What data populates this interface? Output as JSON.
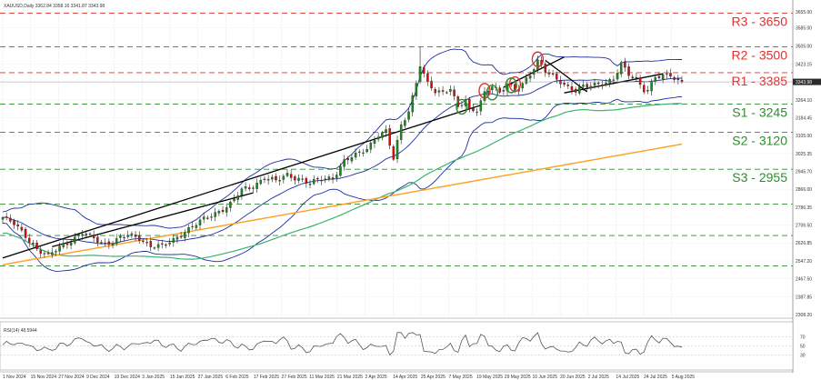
{
  "header": "XAUUSD,Daily  3362.84 3358.16 3341.87 3343.98",
  "rsi_label": "RSI(14) 48.5944",
  "current_price": "3343.98",
  "colors": {
    "resistance": "#e03030",
    "support": "#2e8b2e",
    "bull": "#1a8a1a",
    "bear": "#cc1111",
    "bollinger": "#1f2fa0",
    "ma100": "#3cb371",
    "ma200": "#ffa020",
    "trend": "#000000",
    "rsi": "#555555"
  },
  "levels": [
    {
      "name": "R3",
      "price": 3650,
      "text": "R3 - 3650",
      "kind": "resistance"
    },
    {
      "name": "R2",
      "price": 3500,
      "text": "R2 - 3500",
      "kind": "resistance"
    },
    {
      "name": "R1",
      "price": 3385,
      "text": "R1 - 3385",
      "kind": "resistance"
    },
    {
      "name": "S1",
      "price": 3245,
      "text": "S1 - 3245",
      "kind": "support"
    },
    {
      "name": "S2",
      "price": 3120,
      "text": "S2 - 3120",
      "kind": "support"
    },
    {
      "name": "S3",
      "price": 2955,
      "text": "S3 - 2955",
      "kind": "support"
    },
    {
      "name": "L4",
      "price": 2800,
      "text": "",
      "kind": "support"
    },
    {
      "name": "L5",
      "price": 2660,
      "text": "",
      "kind": "support"
    },
    {
      "name": "L6",
      "price": 2525,
      "text": "",
      "kind": "support"
    }
  ],
  "chart_data": {
    "type": "candlestick",
    "title": "XAUUSD,Daily",
    "xlabel": "",
    "ylabel": "",
    "y_ticks": [
      "3655.00",
      "3585.00",
      "3505.00",
      "3423.15",
      "3343.98",
      "3264.10",
      "3184.45",
      "3105.00",
      "3025.35",
      "2945.70",
      "2866.00",
      "2786.35",
      "2706.50",
      "2626.85",
      "2547.20",
      "2467.50",
      "2387.85",
      "2308.20"
    ],
    "x_ticks": [
      "1 Nov 2024",
      "15 Nov 2024",
      "27 Nov 2024",
      "9 Dec 2024",
      "19 Dec 2024",
      "3 Jan 2025",
      "15 Jan 2025",
      "27 Jan 2025",
      "6 Feb 2025",
      "17 Feb 2025",
      "27 Feb 2025",
      "11 Mar 2025",
      "21 Mar 2025",
      "2 Apr 2025",
      "14 Apr 2025",
      "25 Apr 2025",
      "7 May 2025",
      "19 May 2025",
      "29 May 2025",
      "10 Jun 2025",
      "20 Jun 2025",
      "2 Jul 2025",
      "14 Jul 2025",
      "24 Jul 2025",
      "5 Aug 2025"
    ],
    "close_anchors": [
      [
        0,
        2740
      ],
      [
        3,
        2710
      ],
      [
        6,
        2660
      ],
      [
        9,
        2600
      ],
      [
        12,
        2565
      ],
      [
        15,
        2610
      ],
      [
        18,
        2640
      ],
      [
        21,
        2670
      ],
      [
        24,
        2645
      ],
      [
        27,
        2625
      ],
      [
        30,
        2640
      ],
      [
        33,
        2660
      ],
      [
        36,
        2650
      ],
      [
        39,
        2615
      ],
      [
        42,
        2610
      ],
      [
        45,
        2640
      ],
      [
        48,
        2680
      ],
      [
        51,
        2710
      ],
      [
        54,
        2740
      ],
      [
        57,
        2770
      ],
      [
        60,
        2800
      ],
      [
        63,
        2860
      ],
      [
        66,
        2880
      ],
      [
        69,
        2920
      ],
      [
        72,
        2900
      ],
      [
        75,
        2930
      ],
      [
        78,
        2915
      ],
      [
        81,
        2890
      ],
      [
        84,
        2910
      ],
      [
        87,
        2920
      ],
      [
        90,
        2990
      ],
      [
        93,
        3015
      ],
      [
        96,
        3050
      ],
      [
        99,
        3110
      ],
      [
        101,
        3120
      ],
      [
        103,
        3000
      ],
      [
        105,
        3150
      ],
      [
        107,
        3220
      ],
      [
        109,
        3340
      ],
      [
        110,
        3420
      ],
      [
        112,
        3330
      ],
      [
        114,
        3300
      ],
      [
        116,
        3300
      ],
      [
        118,
        3320
      ],
      [
        120,
        3230
      ],
      [
        122,
        3260
      ],
      [
        123,
        3210
      ],
      [
        125,
        3220
      ],
      [
        127,
        3300
      ],
      [
        129,
        3330
      ],
      [
        131,
        3290
      ],
      [
        133,
        3330
      ],
      [
        135,
        3310
      ],
      [
        137,
        3340
      ],
      [
        139,
        3380
      ],
      [
        141,
        3430
      ],
      [
        143,
        3390
      ],
      [
        145,
        3370
      ],
      [
        147,
        3350
      ],
      [
        149,
        3320
      ],
      [
        151,
        3300
      ],
      [
        153,
        3320
      ],
      [
        155,
        3330
      ],
      [
        157,
        3340
      ],
      [
        159,
        3340
      ],
      [
        161,
        3350
      ],
      [
        163,
        3420
      ],
      [
        165,
        3380
      ],
      [
        167,
        3360
      ],
      [
        169,
        3310
      ],
      [
        170,
        3305
      ],
      [
        172,
        3360
      ],
      [
        174,
        3370
      ],
      [
        176,
        3380
      ],
      [
        178,
        3350
      ]
    ],
    "rsi_ticks": [
      70,
      50,
      30
    ],
    "bollinger_period": 20,
    "ma_periods": [
      100,
      200
    ],
    "annotations": {
      "red_circles_bar_index": [
        127,
        135,
        141
      ],
      "green_circles_bar_index": [
        121,
        129,
        134
      ]
    }
  }
}
